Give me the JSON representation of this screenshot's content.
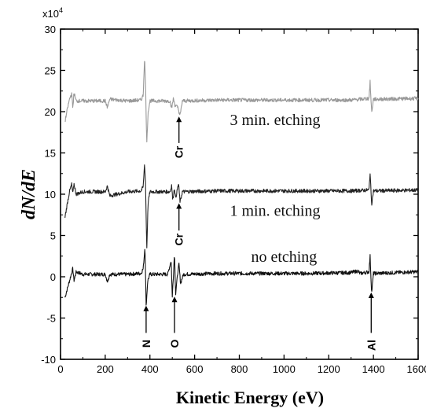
{
  "chart_data": {
    "type": "line",
    "xlabel": "Kinetic Energy (eV)",
    "ylabel": "dN/dE",
    "y_multiplier": "x10",
    "y_multiplier_exp": "4",
    "xlim": [
      0,
      1600
    ],
    "ylim": [
      -10,
      30
    ],
    "xticks": [
      0,
      200,
      400,
      600,
      800,
      1000,
      1200,
      1400,
      1600
    ],
    "yticks": [
      -10,
      -5,
      0,
      5,
      10,
      15,
      20,
      25,
      30
    ],
    "xtick_labels": [
      "0",
      "200",
      "400",
      "600",
      "800",
      "1000",
      "1200",
      "1400",
      "1600"
    ],
    "ytick_labels": [
      "-10",
      "-5",
      "0",
      "5",
      "10",
      "15",
      "20",
      "25",
      "30"
    ],
    "series": [
      {
        "label": "no etching",
        "color": "#111111",
        "baseline": 0.3,
        "points": [
          [
            20,
            -2.5
          ],
          [
            30,
            -1.5
          ],
          [
            40,
            -0.5
          ],
          [
            50,
            0.5
          ],
          [
            55,
            1.0
          ],
          [
            60,
            -0.5
          ],
          [
            70,
            0.6
          ],
          [
            100,
            0.3
          ],
          [
            200,
            0.3
          ],
          [
            210,
            -0.6
          ],
          [
            220,
            0.3
          ],
          [
            300,
            0.3
          ],
          [
            360,
            0.4
          ],
          [
            370,
            1.0
          ],
          [
            378,
            3.7
          ],
          [
            383,
            -3.6
          ],
          [
            390,
            -0.5
          ],
          [
            400,
            0.3
          ],
          [
            480,
            0.3
          ],
          [
            495,
            2.0
          ],
          [
            500,
            -2.5
          ],
          [
            510,
            2.9
          ],
          [
            515,
            -2.0
          ],
          [
            525,
            0.6
          ],
          [
            530,
            1.5
          ],
          [
            537,
            -0.8
          ],
          [
            550,
            0.3
          ],
          [
            700,
            0.4
          ],
          [
            900,
            0.4
          ],
          [
            1100,
            0.4
          ],
          [
            1300,
            0.5
          ],
          [
            1330,
            0.7
          ],
          [
            1340,
            0.4
          ],
          [
            1380,
            0.6
          ],
          [
            1385,
            2.5
          ],
          [
            1392,
            -2.0
          ],
          [
            1400,
            0.4
          ],
          [
            1600,
            0.6
          ]
        ],
        "label_x": 1000,
        "label_y": 1.8
      },
      {
        "label": "1 min. etching",
        "color": "#222222",
        "baseline": 10.3,
        "points": [
          [
            20,
            7.2
          ],
          [
            30,
            8.8
          ],
          [
            40,
            10.3
          ],
          [
            50,
            11.2
          ],
          [
            55,
            10.0
          ],
          [
            60,
            11.3
          ],
          [
            70,
            10.0
          ],
          [
            100,
            10.3
          ],
          [
            200,
            10.3
          ],
          [
            210,
            11.0
          ],
          [
            220,
            9.8
          ],
          [
            300,
            10.3
          ],
          [
            360,
            10.4
          ],
          [
            370,
            10.9
          ],
          [
            376,
            13.8
          ],
          [
            380,
            11.5
          ],
          [
            386,
            3.5
          ],
          [
            392,
            9.0
          ],
          [
            400,
            10.3
          ],
          [
            490,
            10.3
          ],
          [
            497,
            11.1
          ],
          [
            502,
            9.3
          ],
          [
            510,
            10.8
          ],
          [
            515,
            9.5
          ],
          [
            528,
            11.3
          ],
          [
            535,
            9.0
          ],
          [
            545,
            10.3
          ],
          [
            700,
            10.4
          ],
          [
            900,
            10.4
          ],
          [
            1100,
            10.4
          ],
          [
            1300,
            10.4
          ],
          [
            1380,
            10.5
          ],
          [
            1385,
            12.6
          ],
          [
            1392,
            8.8
          ],
          [
            1400,
            10.4
          ],
          [
            1600,
            10.5
          ]
        ],
        "label_x": 960,
        "label_y": 7.4
      },
      {
        "label": "3 min. etching",
        "color": "#999999",
        "baseline": 21.3,
        "points": [
          [
            20,
            18.8
          ],
          [
            30,
            20.2
          ],
          [
            40,
            21.5
          ],
          [
            50,
            22.2
          ],
          [
            55,
            20.4
          ],
          [
            60,
            22.3
          ],
          [
            70,
            21.3
          ],
          [
            100,
            21.3
          ],
          [
            200,
            21.3
          ],
          [
            210,
            20.5
          ],
          [
            220,
            21.5
          ],
          [
            300,
            21.3
          ],
          [
            360,
            21.4
          ],
          [
            370,
            22.0
          ],
          [
            376,
            26.7
          ],
          [
            380,
            23.5
          ],
          [
            386,
            16.2
          ],
          [
            392,
            20.0
          ],
          [
            400,
            21.3
          ],
          [
            490,
            21.3
          ],
          [
            497,
            20.4
          ],
          [
            505,
            21.6
          ],
          [
            512,
            20.8
          ],
          [
            525,
            20.5
          ],
          [
            535,
            19.5
          ],
          [
            545,
            21.3
          ],
          [
            700,
            21.4
          ],
          [
            900,
            21.4
          ],
          [
            1100,
            21.4
          ],
          [
            1300,
            21.4
          ],
          [
            1380,
            21.6
          ],
          [
            1385,
            23.6
          ],
          [
            1392,
            19.9
          ],
          [
            1400,
            21.5
          ],
          [
            1600,
            21.6
          ]
        ],
        "label_x": 960,
        "label_y": 18.4
      }
    ],
    "annotations": [
      {
        "text": "N",
        "x": 383,
        "arrow_top": -3.5,
        "arrow_bottom": -6.8,
        "text_y": -8.1
      },
      {
        "text": "O",
        "x": 510,
        "arrow_top": -2.4,
        "arrow_bottom": -6.8,
        "text_y": -8.1
      },
      {
        "text": "Al",
        "x": 1390,
        "arrow_top": -1.9,
        "arrow_bottom": -6.8,
        "text_y": -8.3
      },
      {
        "text": "Cr",
        "x": 530,
        "arrow_top": 8.9,
        "arrow_bottom": 5.6,
        "text_y": 4.5
      },
      {
        "text": "Cr",
        "x": 530,
        "arrow_top": 19.4,
        "arrow_bottom": 16.2,
        "text_y": 15.1
      }
    ]
  }
}
